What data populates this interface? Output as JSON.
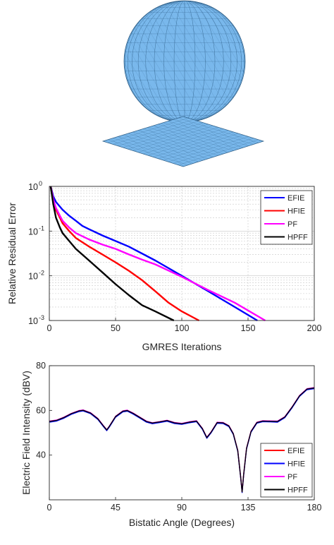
{
  "figure": {
    "caption": ""
  },
  "colors": {
    "mesh_fill": "#79b8ec",
    "mesh_line": "#2f5e86",
    "axis": "#262626",
    "grid": "#c8c8c8",
    "EFIE": "#0000ff",
    "HFIE": "#ff0000",
    "PF": "#ff00ff",
    "HPFF": "#000000"
  },
  "chart_data": [
    {
      "type": "line",
      "xlabel": "GMRES Iterations",
      "ylabel": "Relative Residual Error",
      "xlim": [
        0,
        200
      ],
      "ylim": [
        0.001,
        1
      ],
      "yscale": "log",
      "xticks": [
        0,
        50,
        100,
        150,
        200
      ],
      "ytick_labels": [
        {
          "value": 1,
          "base": "10",
          "exp": "0"
        },
        {
          "value": 0.1,
          "base": "10",
          "exp": "-1"
        },
        {
          "value": 0.01,
          "base": "10",
          "exp": "-2"
        },
        {
          "value": 0.001,
          "base": "10",
          "exp": "-3"
        }
      ],
      "grid": true,
      "legend_position": "top-right",
      "series": [
        {
          "name": "EFIE",
          "color": "#0000ff",
          "x": [
            1,
            3,
            5,
            10,
            15,
            20,
            25,
            30,
            40,
            50,
            60,
            80,
            100,
            120,
            140,
            157
          ],
          "y": [
            1,
            0.6,
            0.45,
            0.3,
            0.22,
            0.17,
            0.13,
            0.11,
            0.08,
            0.06,
            0.045,
            0.022,
            0.01,
            0.0045,
            0.002,
            0.001
          ]
        },
        {
          "name": "HFIE",
          "color": "#ff0000",
          "x": [
            1,
            3,
            5,
            8,
            10,
            15,
            20,
            30,
            40,
            50,
            60,
            70,
            80,
            90,
            100,
            113
          ],
          "y": [
            1,
            0.5,
            0.3,
            0.2,
            0.15,
            0.1,
            0.07,
            0.045,
            0.03,
            0.02,
            0.013,
            0.008,
            0.0045,
            0.0025,
            0.0016,
            0.001
          ]
        },
        {
          "name": "PF",
          "color": "#ff00ff",
          "x": [
            1,
            3,
            5,
            8,
            10,
            15,
            20,
            30,
            40,
            50,
            60,
            70,
            80,
            100,
            120,
            140,
            163
          ],
          "y": [
            1,
            0.5,
            0.33,
            0.22,
            0.17,
            0.12,
            0.09,
            0.065,
            0.05,
            0.04,
            0.03,
            0.023,
            0.018,
            0.0095,
            0.0048,
            0.0025,
            0.001
          ]
        },
        {
          "name": "HPFF",
          "color": "#000000",
          "x": [
            1,
            3,
            5,
            8,
            10,
            15,
            20,
            30,
            40,
            50,
            60,
            70,
            80,
            94
          ],
          "y": [
            1,
            0.4,
            0.2,
            0.12,
            0.09,
            0.06,
            0.04,
            0.022,
            0.012,
            0.0065,
            0.0037,
            0.0022,
            0.0016,
            0.001
          ]
        }
      ]
    },
    {
      "type": "line",
      "xlabel": "Bistatic Angle (Degrees)",
      "ylabel": "Electric Field Intensity (dBV)",
      "xlim": [
        0,
        180
      ],
      "ylim": [
        20,
        80
      ],
      "xticks": [
        0,
        45,
        90,
        135,
        180
      ],
      "yticks": [
        40,
        60,
        80
      ],
      "grid": false,
      "legend_position": "bottom-right",
      "base_curve": {
        "x": [
          0,
          5,
          10,
          15,
          20,
          23,
          28,
          33,
          37,
          39,
          41,
          45,
          50,
          53,
          57,
          62,
          66,
          70,
          75,
          80,
          85,
          90,
          95,
          100,
          104,
          107,
          110,
          114,
          118,
          122,
          125,
          128,
          130,
          131,
          132,
          134,
          137,
          141,
          145,
          150,
          155,
          160,
          165,
          170,
          175,
          180
        ],
        "y": [
          55,
          55.5,
          56.8,
          58.5,
          59.7,
          60,
          58.8,
          56.2,
          52.8,
          51.2,
          53,
          57.2,
          59.6,
          59.9,
          58.6,
          56.6,
          55,
          54.3,
          54.8,
          55.4,
          54.4,
          54,
          54.7,
          55.2,
          51.8,
          47.8,
          50.3,
          54.5,
          54.4,
          53,
          49.5,
          42,
          30,
          23.5,
          31,
          43,
          50.5,
          54.5,
          55.2,
          55.1,
          55,
          57,
          61.5,
          66.5,
          69.5,
          70
        ]
      },
      "series": [
        {
          "name": "EFIE",
          "color": "#ff0000",
          "offset": 0.0
        },
        {
          "name": "HFIE",
          "color": "#0000ff",
          "offset": -0.25
        },
        {
          "name": "PF",
          "color": "#ff00ff",
          "offset": 0.2
        },
        {
          "name": "HPFF",
          "color": "#000000",
          "offset": 0.05
        }
      ]
    }
  ]
}
